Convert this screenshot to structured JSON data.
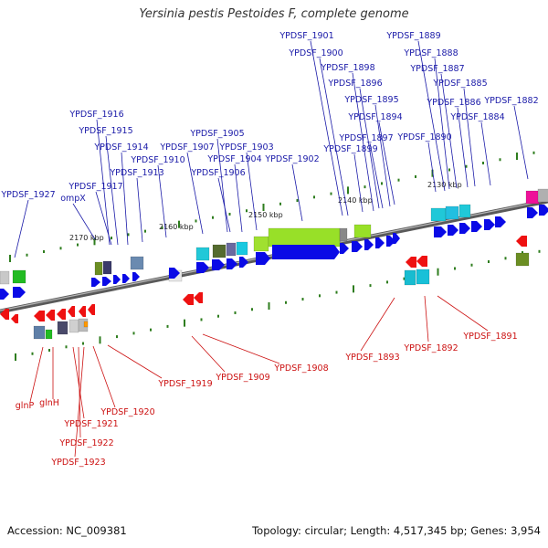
{
  "title": "Yersinia pestis Pestoides F, complete genome",
  "footer": {
    "accession": "Accession: NC_009381",
    "summary": "Topology: circular; Length: 4,517,345 bp; Genes: 3,954"
  },
  "colors": {
    "forward_label": "#1a1aa8",
    "reverse_label": "#cc1111",
    "forward_gene": "#0a0ae6",
    "reverse_gene": "#ee1111",
    "backbone": "#808080",
    "tick": "#2e7d1e"
  },
  "ruler": [
    {
      "label": "2170 kbp"
    },
    {
      "label": "2160 kbp"
    },
    {
      "label": "2150 kbp"
    },
    {
      "label": "2140 kbp"
    },
    {
      "label": "2130 kbp"
    }
  ],
  "forward_labels": [
    {
      "text": "YPDSF_1927"
    },
    {
      "text": "ompX"
    },
    {
      "text": "YPDSF_1917"
    },
    {
      "text": "YPDSF_1916"
    },
    {
      "text": "YPDSF_1915"
    },
    {
      "text": "YPDSF_1914"
    },
    {
      "text": "YPDSF_1913"
    },
    {
      "text": "YPDSF_1910"
    },
    {
      "text": "YPDSF_1907"
    },
    {
      "text": "YPDSF_1906"
    },
    {
      "text": "YPDSF_1905"
    },
    {
      "text": "YPDSF_1904"
    },
    {
      "text": "YPDSF_1903"
    },
    {
      "text": "YPDSF_1902"
    },
    {
      "text": "YPDSF_1901"
    },
    {
      "text": "YPDSF_1900"
    },
    {
      "text": "YPDSF_1898"
    },
    {
      "text": "YPDSF_1896"
    },
    {
      "text": "YPDSF_1895"
    },
    {
      "text": "YPDSF_1894"
    },
    {
      "text": "YPDSF_1897"
    },
    {
      "text": "YPDSF_1899"
    },
    {
      "text": "YPDSF_1889"
    },
    {
      "text": "YPDSF_1888"
    },
    {
      "text": "YPDSF_1887"
    },
    {
      "text": "YPDSF_1885"
    },
    {
      "text": "YPDSF_1886"
    },
    {
      "text": "YPDSF_1884"
    },
    {
      "text": "YPDSF_1882"
    },
    {
      "text": "YPDSF_1890"
    }
  ],
  "reverse_labels": [
    {
      "text": "glnP"
    },
    {
      "text": "glnH"
    },
    {
      "text": "YPDSF_1921"
    },
    {
      "text": "YPDSF_1922"
    },
    {
      "text": "YPDSF_1923"
    },
    {
      "text": "YPDSF_1920"
    },
    {
      "text": "YPDSF_1919"
    },
    {
      "text": "YPDSF_1909"
    },
    {
      "text": "YPDSF_1908"
    },
    {
      "text": "YPDSF_1893"
    },
    {
      "text": "YPDSF_1892"
    },
    {
      "text": "YPDSF_1891"
    }
  ]
}
